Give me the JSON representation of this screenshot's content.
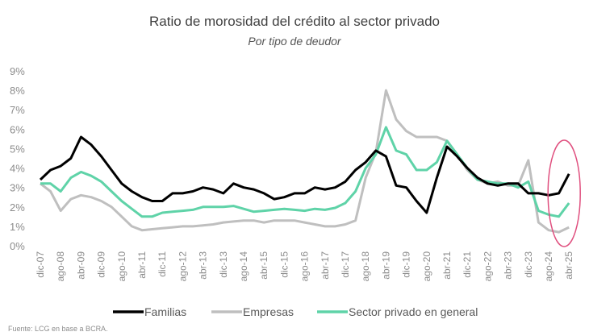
{
  "chart_data": {
    "type": "line",
    "title": "Ratio de morosidad del crédito al sector privado",
    "subtitle": "Por tipo de deudor",
    "xlabel": "",
    "ylabel": "",
    "ylim": [
      0,
      9
    ],
    "yticks": [
      "0%",
      "1%",
      "2%",
      "3%",
      "4%",
      "5%",
      "6%",
      "7%",
      "8%",
      "9%"
    ],
    "xtick_labels": [
      "dic-07",
      "ago-08",
      "abr-09",
      "dic-09",
      "ago-10",
      "abr-11",
      "dic-11",
      "ago-12",
      "abr-13",
      "dic-13",
      "ago-14",
      "abr-15",
      "dic-15",
      "ago-16",
      "abr-17",
      "dic-17",
      "ago-18",
      "abr-19",
      "dic-19",
      "ago-20",
      "abr-21",
      "dic-21",
      "ago-22",
      "abr-23",
      "dic-23",
      "ago-24",
      "abr-25"
    ],
    "x_step_months": 4,
    "grid": false,
    "legend_position": "bottom",
    "series": [
      {
        "name": "Familias",
        "color": "#000000",
        "values": [
          3.4,
          3.9,
          4.1,
          4.5,
          5.6,
          5.2,
          4.6,
          3.9,
          3.2,
          2.8,
          2.5,
          2.3,
          2.3,
          2.7,
          2.7,
          2.8,
          3.0,
          2.9,
          2.7,
          3.2,
          3.0,
          2.9,
          2.7,
          2.4,
          2.5,
          2.7,
          2.7,
          3.0,
          2.9,
          3.0,
          3.3,
          3.9,
          4.3,
          4.9,
          4.6,
          3.1,
          3.0,
          2.3,
          1.7,
          3.5,
          5.1,
          4.6,
          4.0,
          3.5,
          3.2,
          3.1,
          3.2,
          3.2,
          2.7,
          2.7,
          2.6,
          2.7,
          3.7
        ]
      },
      {
        "name": "Empresas",
        "color": "#bfbfbf",
        "values": [
          3.2,
          2.8,
          1.8,
          2.4,
          2.6,
          2.5,
          2.3,
          2.0,
          1.5,
          1.0,
          0.8,
          0.85,
          0.9,
          0.95,
          1.0,
          1.0,
          1.05,
          1.1,
          1.2,
          1.25,
          1.3,
          1.3,
          1.2,
          1.3,
          1.3,
          1.3,
          1.2,
          1.1,
          1.0,
          1.0,
          1.1,
          1.3,
          3.5,
          4.8,
          8.0,
          6.5,
          5.9,
          5.6,
          5.6,
          5.6,
          5.4,
          4.7,
          3.9,
          3.4,
          3.2,
          3.3,
          3.1,
          3.1,
          4.4,
          1.2,
          0.8,
          0.7,
          0.95
        ]
      },
      {
        "name": "Sector privado en general",
        "color": "#5fd3a8",
        "values": [
          3.2,
          3.2,
          2.8,
          3.5,
          3.8,
          3.6,
          3.3,
          2.8,
          2.3,
          1.9,
          1.5,
          1.5,
          1.7,
          1.75,
          1.8,
          1.85,
          2.0,
          2.0,
          2.0,
          2.05,
          1.9,
          1.75,
          1.8,
          1.85,
          1.9,
          1.85,
          1.8,
          1.9,
          1.85,
          1.95,
          2.2,
          2.8,
          4.0,
          4.7,
          6.1,
          4.9,
          4.7,
          3.9,
          3.9,
          4.3,
          5.4,
          4.7,
          4.0,
          3.4,
          3.3,
          3.2,
          3.2,
          3.0,
          3.3,
          1.8,
          1.6,
          1.5,
          2.2
        ]
      }
    ],
    "annotation": {
      "type": "ellipse",
      "color": "#e0507f",
      "target": "abr-25"
    }
  },
  "source": "Fuente: LCG en base a BCRA."
}
